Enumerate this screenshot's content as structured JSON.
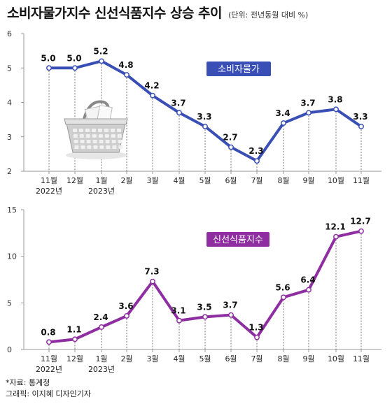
{
  "header": {
    "title": "소비자물가지수 신선식품지수 상승 추이",
    "unit": "(단위: 전년동월 대비 %)"
  },
  "footer": {
    "source": "*자료: 통계청",
    "credit": "그래픽: 이지혜 디자인기자"
  },
  "chart_data": [
    {
      "type": "line",
      "categories": [
        "11월",
        "12월",
        "1월",
        "2월",
        "3월",
        "4월",
        "5월",
        "6월",
        "7월",
        "8월",
        "9월",
        "10월",
        "11월"
      ],
      "year_labels": [
        "2022년",
        "",
        "2023년",
        "",
        "",
        "",
        "",
        "",
        "",
        "",
        "",
        "",
        ""
      ],
      "series": [
        {
          "name": "소비자물가",
          "values": [
            5.0,
            5.0,
            5.2,
            4.8,
            4.2,
            3.7,
            3.3,
            2.7,
            2.3,
            3.4,
            3.7,
            3.8,
            3.3
          ]
        }
      ],
      "value_labels": [
        "5.0",
        "5.0",
        "5.2",
        "4.8",
        "4.2",
        "3.7",
        "3.3",
        "2.7",
        "2.3",
        "3.4",
        "3.7",
        "3.8",
        "3.3"
      ],
      "yticks": [
        "6",
        "5",
        "4",
        "3",
        "2"
      ],
      "ylim": [
        2,
        6
      ],
      "color": "#3a4fb5",
      "grid": false
    },
    {
      "type": "line",
      "categories": [
        "11월",
        "12월",
        "1월",
        "2월",
        "3월",
        "4월",
        "5월",
        "6월",
        "7월",
        "8월",
        "9월",
        "10월",
        "11월"
      ],
      "year_labels": [
        "2022년",
        "",
        "2023년",
        "",
        "",
        "",
        "",
        "",
        "",
        "",
        "",
        "",
        ""
      ],
      "series": [
        {
          "name": "신선식품지수",
          "values": [
            0.8,
            1.1,
            2.4,
            3.6,
            7.3,
            3.1,
            3.5,
            3.7,
            1.3,
            5.6,
            6.4,
            12.1,
            12.7
          ]
        }
      ],
      "value_labels": [
        "0.8",
        "1.1",
        "2.4",
        "3.6",
        "7.3",
        "3.1",
        "3.5",
        "3.7",
        "1.3",
        "5.6",
        "6.4",
        "12.1",
        "12.7"
      ],
      "yticks": [
        "15",
        "10",
        "5",
        "0"
      ],
      "ylim": [
        0,
        15
      ],
      "color": "#8e2ea1",
      "grid": false
    }
  ]
}
